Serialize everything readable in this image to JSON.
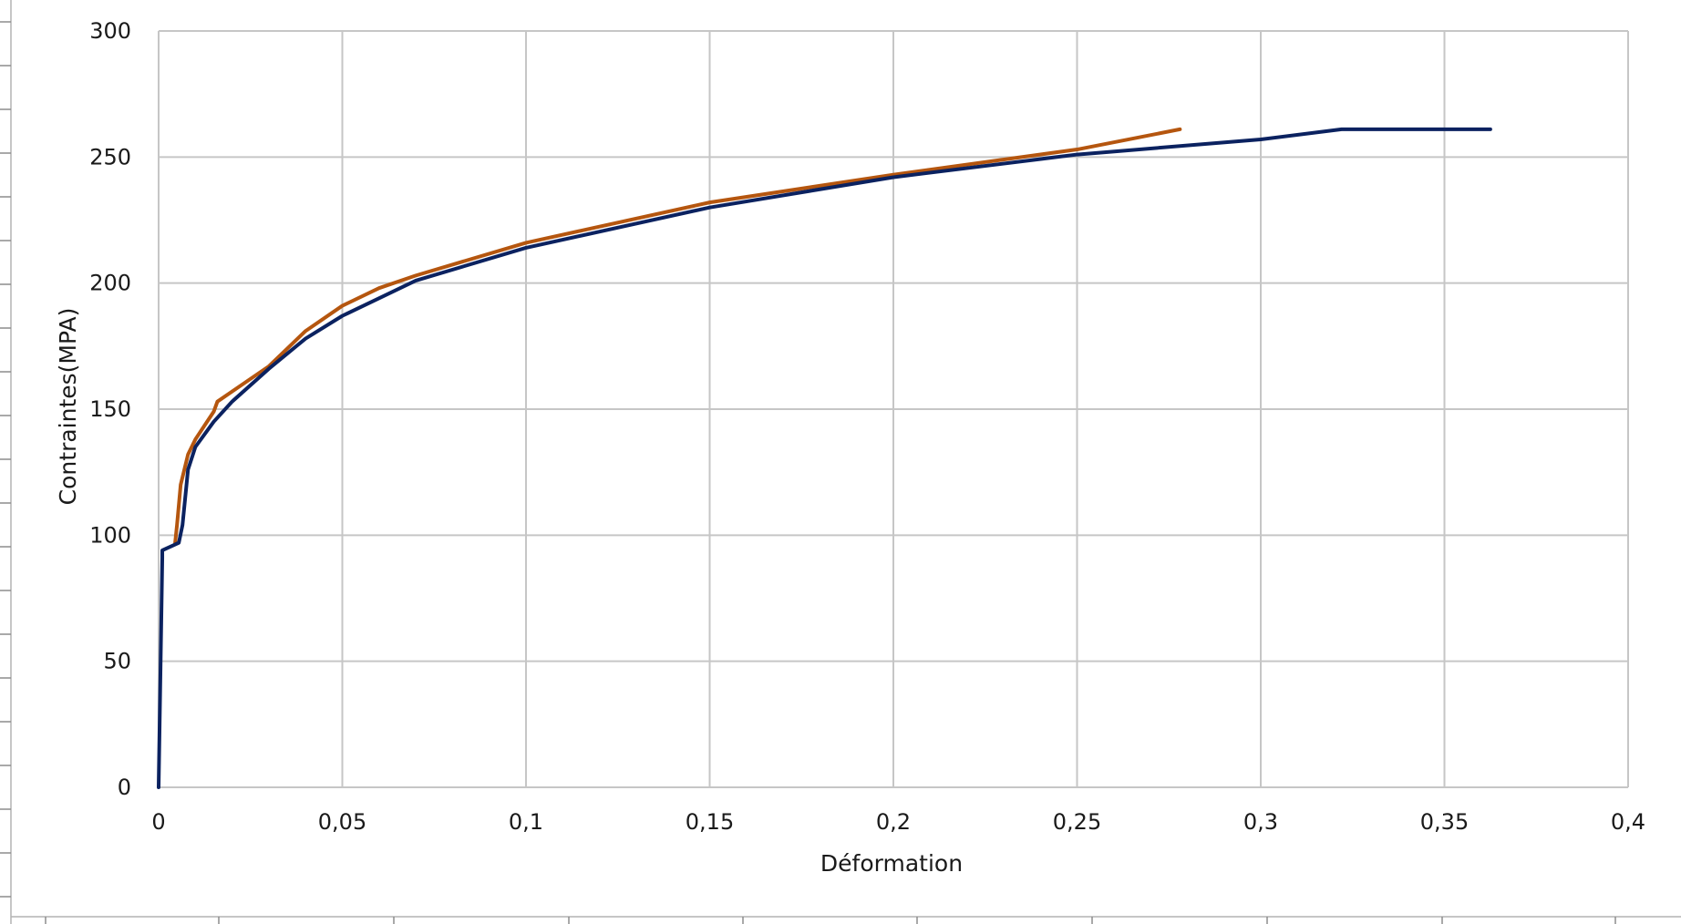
{
  "chart_data": {
    "type": "line",
    "title": "",
    "xlabel": "Déformation",
    "ylabel": "Contraintes(MPA)",
    "xlim": [
      0,
      0.4
    ],
    "ylim": [
      0,
      300
    ],
    "grid": true,
    "legend": "none",
    "x_ticks": [
      "0",
      "0,05",
      "0,1",
      "0,15",
      "0,2",
      "0,25",
      "0,3",
      "0,35",
      "0,4"
    ],
    "y_ticks": [
      "0",
      "50",
      "100",
      "150",
      "200",
      "250",
      "300"
    ],
    "x_tick_values": [
      0,
      0.05,
      0.1,
      0.15,
      0.2,
      0.25,
      0.3,
      0.35,
      0.4
    ],
    "y_tick_values": [
      0,
      50,
      100,
      150,
      200,
      250,
      300
    ],
    "series": [
      {
        "color": "#0b2260",
        "points": [
          [
            0,
            0
          ],
          [
            0.001,
            91
          ],
          [
            0.001,
            94
          ],
          [
            0.004,
            96
          ],
          [
            0.0055,
            97
          ],
          [
            0.0065,
            104
          ],
          [
            0.008,
            126
          ],
          [
            0.01,
            135
          ],
          [
            0.015,
            145
          ],
          [
            0.02,
            153
          ],
          [
            0.03,
            166
          ],
          [
            0.04,
            178
          ],
          [
            0.05,
            187
          ],
          [
            0.06,
            194
          ],
          [
            0.07,
            201
          ],
          [
            0.1,
            214
          ],
          [
            0.15,
            230
          ],
          [
            0.2,
            242
          ],
          [
            0.25,
            251
          ],
          [
            0.3,
            257
          ],
          [
            0.322,
            261
          ],
          [
            0.3625,
            261
          ]
        ]
      },
      {
        "color": "#b5560f",
        "points": [
          [
            0.0045,
            97
          ],
          [
            0.005,
            104
          ],
          [
            0.006,
            120
          ],
          [
            0.008,
            132
          ],
          [
            0.01,
            138
          ],
          [
            0.015,
            149
          ],
          [
            0.016,
            153
          ],
          [
            0.02,
            157
          ],
          [
            0.03,
            167
          ],
          [
            0.04,
            181
          ],
          [
            0.05,
            191
          ],
          [
            0.06,
            198
          ],
          [
            0.07,
            203
          ],
          [
            0.1,
            216
          ],
          [
            0.15,
            232
          ],
          [
            0.2,
            243
          ],
          [
            0.25,
            253
          ],
          [
            0.278,
            261
          ]
        ]
      }
    ]
  }
}
